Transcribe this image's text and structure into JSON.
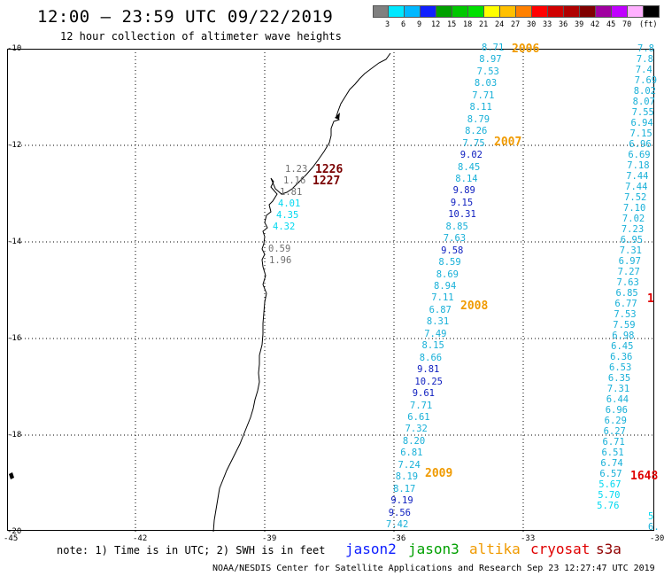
{
  "title": "12:00 – 23:59 UTC 09/22/2019",
  "subtitle": "12 hour collection of altimeter wave heights",
  "legend": {
    "colors": [
      "#808080",
      "#00e8ff",
      "#00b8ff",
      "#1020ff",
      "#00a000",
      "#00c800",
      "#00e000",
      "#ffff00",
      "#ffc000",
      "#ff8000",
      "#ff0000",
      "#d00000",
      "#b00000",
      "#800000",
      "#a000a0",
      "#c000ff",
      "#ffb0ff",
      "#000000"
    ],
    "labels": [
      "3",
      "6",
      "9",
      "12",
      "15",
      "18",
      "21",
      "24",
      "27",
      "30",
      "33",
      "36",
      "39",
      "42",
      "45",
      "70"
    ],
    "unit": "(ft)"
  },
  "axes": {
    "y_ticks": [
      "-10",
      "-12",
      "-14",
      "-16",
      "-18",
      "-20"
    ],
    "x_ticks": [
      "-45",
      "-42",
      "-39",
      "-36",
      "-33",
      "-30"
    ]
  },
  "passes": {
    "p2006": "2006",
    "p2007": "2007",
    "p2008": "2008",
    "p2009": "2009",
    "p1226": "1226",
    "p1227": "1227",
    "p1648": "1648",
    "p_right_edge": "1"
  },
  "coastal_labels": [
    "1.23",
    "1.16",
    "1.81",
    "4.01",
    "4.35",
    "4.32",
    "0.59",
    "1.96"
  ],
  "track_a": [
    "8.71",
    "8.97",
    "7.53",
    "8.03",
    "7.71",
    "8.11",
    "8.79",
    "8.26",
    "7.75",
    "9.02",
    "8.45",
    "8.14",
    "9.89",
    "9.15",
    "10.31",
    "8.85",
    "7.63",
    "9.58",
    "8.59",
    "8.69",
    "8.94",
    "7.11",
    "6.87",
    "8.31",
    "7.49",
    "8.15",
    "8.66",
    "9.81",
    "10.25",
    "9.61",
    "7.71",
    "6.61",
    "7.32",
    "8.20",
    "6.81",
    "7.24",
    "8.19",
    "8.17",
    "9.19",
    "9.56",
    "7.42"
  ],
  "track_b": [
    "7.8",
    "7.8",
    "7.4",
    "7.69",
    "8.02",
    "8.07",
    "7.55",
    "6.94",
    "7.15",
    "6.96",
    "6.69",
    "7.18",
    "7.44",
    "7.44",
    "7.52",
    "7.10",
    "7.02",
    "7.23",
    "6.95",
    "7.31",
    "6.97",
    "7.27",
    "7.63",
    "6.85",
    "6.77",
    "7.53",
    "7.59",
    "6.98",
    "6.45",
    "6.36",
    "6.53",
    "6.35",
    "7.31",
    "6.44",
    "6.96",
    "6.29",
    "6.27",
    "6.71",
    "6.51",
    "6.74",
    "6.57",
    "5.67",
    "5.70",
    "5.76",
    "5",
    "6."
  ],
  "note": "note: 1) Time is in UTC; 2) SWH is in feet",
  "satellites": [
    "jason2",
    "jason3",
    "altika",
    "cryosat",
    "s3a"
  ],
  "footer": "NOAA/NESDIS Center for Satellite Applications and Research    Sep 23 12:27:47 UTC 2019"
}
